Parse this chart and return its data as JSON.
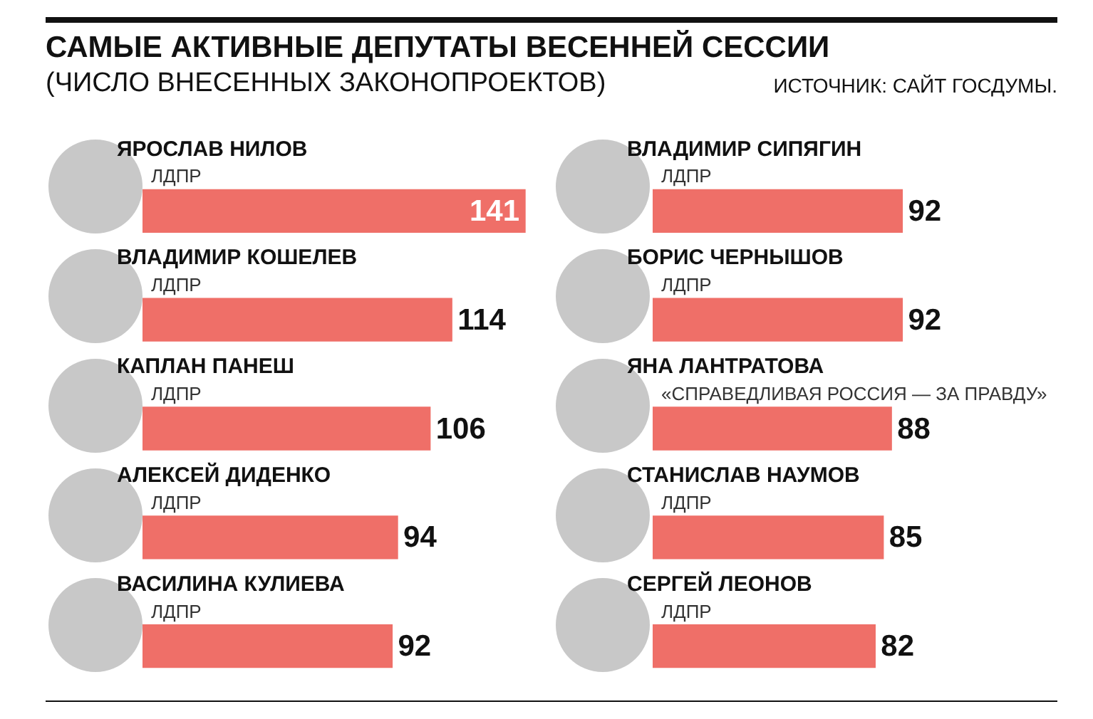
{
  "chart_data": [
    {
      "type": "bar",
      "orientation": "horizontal",
      "title": "САМЫЕ АКТИВНЫЕ ДЕПУТАТЫ ВЕСЕННЕЙ СЕССИИ",
      "subtitle": "(ЧИСЛО ВНЕСЕННЫХ ЗАКОНОПРОЕКТОВ)",
      "categories": [
        "ЯРОСЛАВ НИЛОВ",
        "ВЛАДИМИР КОШЕЛЕВ",
        "КАПЛАН ПАНЕШ",
        "АЛЕКСЕЙ ДИДЕНКО",
        "ВАСИЛИНА КУЛИЕВА"
      ],
      "values": [
        141,
        114,
        106,
        94,
        92
      ],
      "color": "#ef6f68",
      "tick_labels": "y",
      "data_labels": true,
      "annotations": [
        "ЛДПР",
        "ЛДПР",
        "ЛДПР",
        "ЛДПР",
        "ЛДПР"
      ]
    },
    {
      "type": "bar",
      "orientation": "horizontal",
      "categories": [
        "ВЛАДИМИР СИПЯГИН",
        "БОРИС ЧЕРНЫШОВ",
        "ЯНА ЛАНТРАТОВА",
        "СТАНИСЛАВ НАУМОВ",
        "СЕРГЕЙ ЛЕОНОВ"
      ],
      "values": [
        92,
        92,
        88,
        85,
        82
      ],
      "color": "#ef6f68",
      "tick_labels": "y",
      "data_labels": true,
      "annotations": [
        "ЛДПР",
        "ЛДПР",
        "«СПРАВЕДЛИВАЯ РОССИЯ — ЗА ПРАВДУ»",
        "ЛДПР",
        "ЛДПР",
        "ИСТОЧНИК: САЙТ ГОСДУМЫ."
      ]
    }
  ]
}
